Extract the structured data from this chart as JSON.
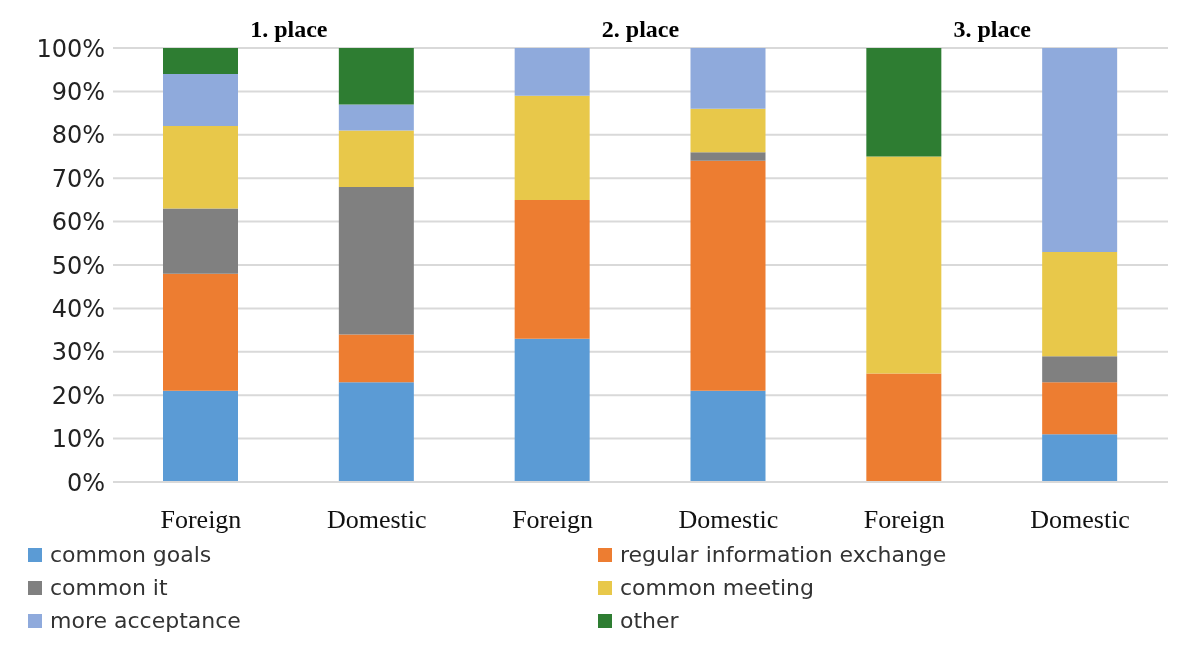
{
  "chart_data": {
    "type": "bar",
    "stacked": true,
    "annotations": [
      "1. place",
      "2. place",
      "3. place"
    ],
    "categories": [
      "Foreign",
      "Domestic",
      "Foreign",
      "Domestic",
      "Foreign",
      "Domestic"
    ],
    "series": [
      {
        "name": "common goals",
        "color": "#5b9bd5",
        "values": [
          21,
          23,
          33,
          21,
          0,
          11
        ]
      },
      {
        "name": "regular information exchange",
        "color": "#ed7d31",
        "values": [
          27,
          11,
          32,
          53,
          25,
          12
        ]
      },
      {
        "name": "common it",
        "color": "#808080",
        "values": [
          15,
          34,
          0,
          2,
          0,
          6
        ]
      },
      {
        "name": "common meeting",
        "color": "#e8c84a",
        "values": [
          19,
          13,
          24,
          10,
          50,
          24
        ]
      },
      {
        "name": "more acceptance",
        "color": "#8faadc",
        "values": [
          12,
          6,
          11,
          14,
          0,
          47
        ]
      },
      {
        "name": "other",
        "color": "#2e7d32",
        "values": [
          6,
          13,
          0,
          0,
          25,
          0
        ]
      }
    ],
    "ylim": [
      0,
      100
    ],
    "yticks": [
      {
        "value": 0,
        "label": "0%"
      },
      {
        "value": 10,
        "label": "10%"
      },
      {
        "value": 20,
        "label": "20%"
      },
      {
        "value": 30,
        "label": "30%"
      },
      {
        "value": 40,
        "label": "40%"
      },
      {
        "value": 50,
        "label": "50%"
      },
      {
        "value": 60,
        "label": "60%"
      },
      {
        "value": 70,
        "label": "70%"
      },
      {
        "value": 80,
        "label": "80%"
      },
      {
        "value": 90,
        "label": "90%"
      },
      {
        "value": 100,
        "label": "100%"
      }
    ],
    "grid": "y",
    "legend": "bottom"
  }
}
